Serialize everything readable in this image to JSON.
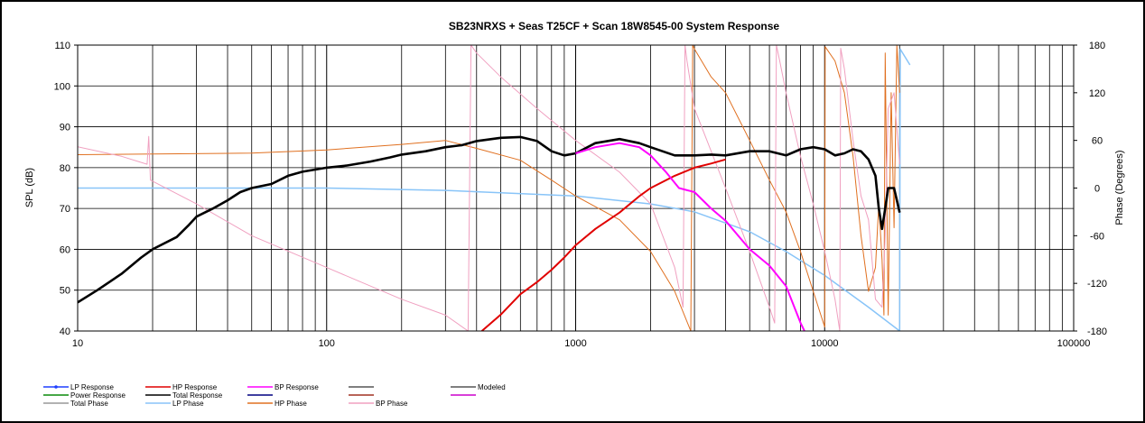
{
  "chart_data": {
    "type": "line",
    "title": "SB23NRXS + Seas T25CF + Scan 18W8545-00   System Response",
    "x_scale": "log",
    "xlim": [
      10,
      100000
    ],
    "x_ticks": [
      10,
      100,
      1000,
      10000,
      100000
    ],
    "x_tick_labels": [
      "10",
      "100",
      "1000",
      "10000",
      "100000"
    ],
    "ylabel": "SPL (dB)",
    "ylim": [
      40,
      110
    ],
    "y_ticks": [
      "40",
      "50",
      "60",
      "70",
      "80",
      "90",
      "100",
      "110"
    ],
    "y2label": "Phase (Degrees)",
    "y2lim": [
      -180,
      180
    ],
    "y2_ticks": [
      "-180",
      "-120",
      "-60",
      "0",
      "60",
      "120",
      "180"
    ],
    "grid": true,
    "legend_position": "bottom",
    "legend": [
      {
        "label": "LP Response",
        "color": "#1f3fff",
        "marker": true
      },
      {
        "label": "HP Response",
        "color": "#e00000"
      },
      {
        "label": "BP Response",
        "color": "#ff00ff"
      },
      {
        "label": "",
        "color": "#555555"
      },
      {
        "label": "Modeled",
        "color": "#555555"
      },
      {
        "label": "Power Response",
        "color": "#0a8a0a"
      },
      {
        "label": "Total Response",
        "color": "#000000"
      },
      {
        "label": "",
        "color": "#000080"
      },
      {
        "label": "",
        "color": "#a03020"
      },
      {
        "label": "",
        "color": "#cc00cc"
      },
      {
        "label": "Total Phase",
        "color": "#999999"
      },
      {
        "label": "LP Phase",
        "color": "#88c4f8"
      },
      {
        "label": "HP Phase",
        "color": "#e07020"
      },
      {
        "label": "BP Phase",
        "color": "#f0a0c0"
      }
    ],
    "series": [
      {
        "name": "Total Response",
        "axis": "left",
        "color": "#000000",
        "width": 2.6,
        "points": [
          [
            10,
            47
          ],
          [
            12,
            50
          ],
          [
            15,
            54
          ],
          [
            18,
            58
          ],
          [
            20,
            60
          ],
          [
            25,
            63
          ],
          [
            28,
            66
          ],
          [
            30,
            68
          ],
          [
            35,
            70
          ],
          [
            40,
            72
          ],
          [
            45,
            74
          ],
          [
            50,
            75
          ],
          [
            60,
            76
          ],
          [
            70,
            78
          ],
          [
            80,
            79
          ],
          [
            100,
            80
          ],
          [
            120,
            80.5
          ],
          [
            150,
            81.5
          ],
          [
            180,
            82.5
          ],
          [
            200,
            83.2
          ],
          [
            250,
            84
          ],
          [
            300,
            85
          ],
          [
            350,
            85.5
          ],
          [
            400,
            86.5
          ],
          [
            500,
            87.3
          ],
          [
            600,
            87.5
          ],
          [
            700,
            86.5
          ],
          [
            800,
            84
          ],
          [
            900,
            83
          ],
          [
            1000,
            83.5
          ],
          [
            1200,
            86
          ],
          [
            1500,
            87
          ],
          [
            1800,
            86
          ],
          [
            2000,
            85
          ],
          [
            2500,
            83
          ],
          [
            3000,
            83
          ],
          [
            3500,
            83.2
          ],
          [
            4000,
            83
          ],
          [
            5000,
            84
          ],
          [
            6000,
            84
          ],
          [
            7000,
            83
          ],
          [
            8000,
            84.5
          ],
          [
            9000,
            85
          ],
          [
            10000,
            84.5
          ],
          [
            11000,
            83
          ],
          [
            12000,
            83.5
          ],
          [
            13000,
            84.5
          ],
          [
            14000,
            84
          ],
          [
            15000,
            82
          ],
          [
            16000,
            78
          ],
          [
            16500,
            70
          ],
          [
            17000,
            65
          ],
          [
            17500,
            70
          ],
          [
            18000,
            75
          ],
          [
            19000,
            75
          ],
          [
            20000,
            69
          ]
        ]
      },
      {
        "name": "HP Response",
        "axis": "left",
        "color": "#e00000",
        "width": 2,
        "points": [
          [
            420,
            40
          ],
          [
            500,
            44
          ],
          [
            600,
            49
          ],
          [
            700,
            52
          ],
          [
            800,
            55
          ],
          [
            900,
            58
          ],
          [
            1000,
            61
          ],
          [
            1200,
            65
          ],
          [
            1500,
            69
          ],
          [
            1800,
            73
          ],
          [
            2000,
            75
          ],
          [
            2500,
            78
          ],
          [
            3000,
            80
          ],
          [
            3500,
            81
          ],
          [
            4000,
            82
          ]
        ]
      },
      {
        "name": "BP Response",
        "axis": "left",
        "color": "#ff00ff",
        "width": 2,
        "points": [
          [
            1000,
            83.5
          ],
          [
            1200,
            85
          ],
          [
            1500,
            86
          ],
          [
            1800,
            85
          ],
          [
            2000,
            83
          ],
          [
            2300,
            79
          ],
          [
            2600,
            75
          ],
          [
            3000,
            74
          ],
          [
            3500,
            70
          ],
          [
            4000,
            67
          ],
          [
            5000,
            60
          ],
          [
            6000,
            56
          ],
          [
            7000,
            51
          ],
          [
            8000,
            42
          ],
          [
            8300,
            40
          ]
        ]
      },
      {
        "name": "LP Phase",
        "axis": "right",
        "color": "#88c4f8",
        "width": 1.5,
        "points": [
          [
            10,
            0
          ],
          [
            100,
            0
          ],
          [
            300,
            -3
          ],
          [
            1000,
            -10
          ],
          [
            2000,
            -20
          ],
          [
            3000,
            -30
          ],
          [
            5000,
            -55
          ],
          [
            7000,
            -80
          ],
          [
            10000,
            -110
          ],
          [
            15000,
            -150
          ],
          [
            20000,
            -180
          ],
          [
            20100,
            175
          ],
          [
            22000,
            155
          ]
        ]
      },
      {
        "name": "HP Phase",
        "axis": "right",
        "color": "#e07020",
        "width": 1,
        "points": [
          [
            10,
            42
          ],
          [
            50,
            44
          ],
          [
            100,
            48
          ],
          [
            200,
            55
          ],
          [
            300,
            60
          ],
          [
            400,
            50
          ],
          [
            600,
            35
          ],
          [
            800,
            10
          ],
          [
            1000,
            -10
          ],
          [
            1500,
            -40
          ],
          [
            2000,
            -80
          ],
          [
            2500,
            -130
          ],
          [
            2900,
            -180
          ],
          [
            2950,
            180
          ],
          [
            3000,
            175
          ],
          [
            3500,
            140
          ],
          [
            4000,
            120
          ],
          [
            5000,
            60
          ],
          [
            6000,
            10
          ],
          [
            7000,
            -30
          ],
          [
            8000,
            -80
          ],
          [
            9000,
            -130
          ],
          [
            10000,
            -175
          ],
          [
            10050,
            178
          ],
          [
            11000,
            160
          ],
          [
            12000,
            120
          ],
          [
            13000,
            40
          ],
          [
            14000,
            -60
          ],
          [
            15000,
            -130
          ],
          [
            16000,
            -100
          ],
          [
            16500,
            -20
          ],
          [
            17000,
            -90
          ],
          [
            17300,
            -160
          ],
          [
            17500,
            170
          ],
          [
            18000,
            -160
          ],
          [
            18500,
            120
          ],
          [
            19000,
            -50
          ],
          [
            19500,
            180
          ],
          [
            20000,
            120
          ]
        ]
      },
      {
        "name": "BP Phase",
        "axis": "right",
        "color": "#f0a0c0",
        "width": 1,
        "points": [
          [
            10,
            52
          ],
          [
            15,
            40
          ],
          [
            19,
            30
          ],
          [
            19.3,
            65
          ],
          [
            19.6,
            10
          ],
          [
            30,
            -20
          ],
          [
            50,
            -60
          ],
          [
            100,
            -100
          ],
          [
            200,
            -140
          ],
          [
            300,
            -160
          ],
          [
            370,
            -180
          ],
          [
            380,
            180
          ],
          [
            400,
            170
          ],
          [
            500,
            140
          ],
          [
            700,
            100
          ],
          [
            1000,
            60
          ],
          [
            1500,
            20
          ],
          [
            2000,
            -20
          ],
          [
            2500,
            -100
          ],
          [
            2700,
            -150
          ],
          [
            2750,
            180
          ],
          [
            2800,
            160
          ],
          [
            3000,
            100
          ],
          [
            4000,
            0
          ],
          [
            5000,
            -80
          ],
          [
            6000,
            -150
          ],
          [
            6300,
            -170
          ],
          [
            6400,
            180
          ],
          [
            6600,
            160
          ],
          [
            7000,
            120
          ],
          [
            8000,
            40
          ],
          [
            9000,
            -20
          ],
          [
            10000,
            -80
          ],
          [
            11000,
            -140
          ],
          [
            11500,
            -180
          ],
          [
            11600,
            176
          ],
          [
            12000,
            150
          ],
          [
            13000,
            60
          ],
          [
            14000,
            -10
          ],
          [
            15000,
            -40
          ],
          [
            16000,
            -140
          ],
          [
            17000,
            -150
          ],
          [
            17500,
            -60
          ],
          [
            18000,
            100
          ],
          [
            19000,
            120
          ],
          [
            20000,
            30
          ]
        ]
      }
    ]
  }
}
